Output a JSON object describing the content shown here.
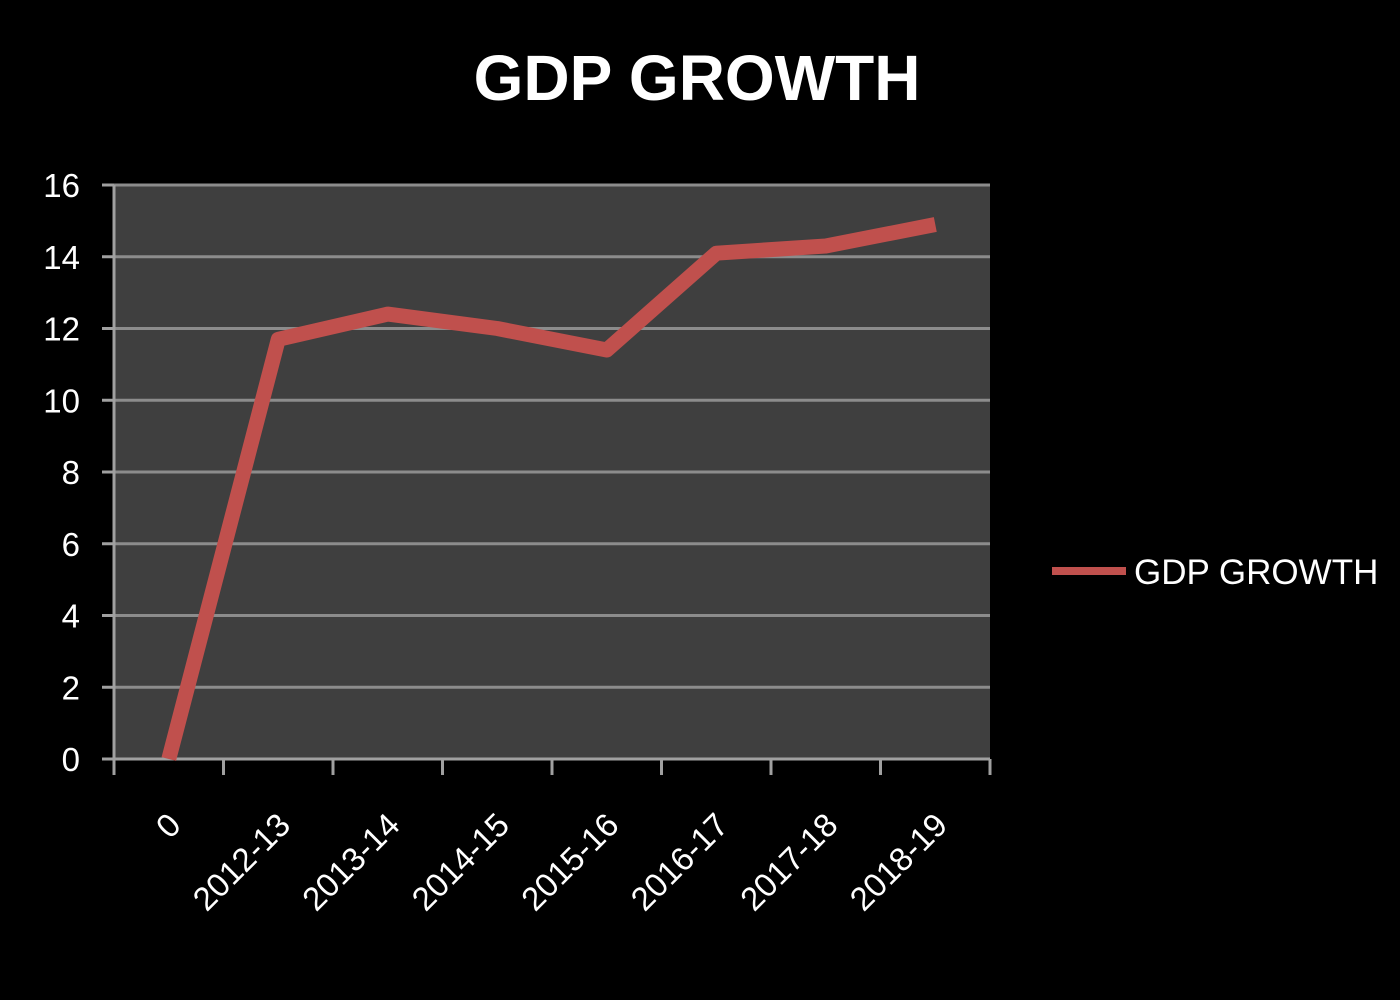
{
  "chart_data": {
    "type": "line",
    "title": "GDP GROWTH",
    "xlabel": "",
    "ylabel": "",
    "categories": [
      "0",
      "2012-13",
      "2013-14",
      "2014-15",
      "2015-16",
      "2016-17",
      "2017-18",
      "2018-19"
    ],
    "series": [
      {
        "name": "GDP GROWTH",
        "values": [
          0,
          11.7,
          12.4,
          12.0,
          11.4,
          14.1,
          14.3,
          14.9
        ]
      }
    ],
    "ylim": [
      0,
      16
    ],
    "yticks": [
      "0",
      "2",
      "4",
      "6",
      "8",
      "10",
      "12",
      "14",
      "16"
    ],
    "grid": true,
    "legend": "right",
    "colors": {
      "background": "#000000",
      "plot_area": "#3f3f3f",
      "gridline": "#8c8c8c",
      "axis": "#a0a0a0",
      "series": "#c0504d",
      "text": "#ffffff"
    }
  }
}
